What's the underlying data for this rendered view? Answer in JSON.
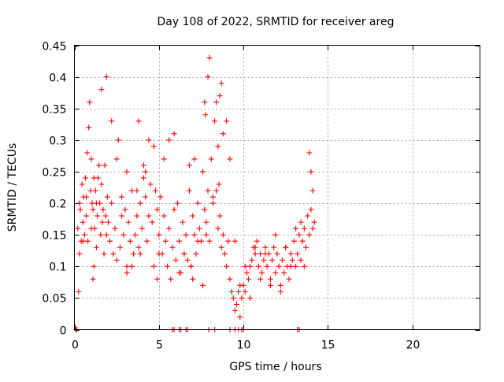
{
  "chart_data": {
    "type": "scatter",
    "title": "Day 108 of 2022, SRMTID for receiver areg",
    "xlabel": "GPS time / hours",
    "ylabel": "SRMTID / TECUs",
    "xlim": [
      0,
      24
    ],
    "ylim": [
      0,
      0.45
    ],
    "x_ticks": [
      0,
      5,
      10,
      15,
      20
    ],
    "x_tick_labels": [
      "0",
      "5",
      "10",
      "15",
      "20"
    ],
    "y_ticks": [
      0,
      0.05,
      0.1,
      0.15,
      0.2,
      0.25,
      0.3,
      0.35,
      0.4,
      0.45
    ],
    "y_tick_labels": [
      "0",
      "0.05",
      "0.1",
      "0.15",
      "0.2",
      "0.25",
      "0.3",
      "0.35",
      "0.4",
      "0.45"
    ],
    "grid": true,
    "marker": "+",
    "color": "#ff0000",
    "series": [
      {
        "name": "areg",
        "x": [
          0.2,
          0.25,
          0.3,
          0.35,
          0.4,
          0.45,
          0.5,
          0.55,
          0.6,
          0.65,
          0.7,
          0.75,
          0.8,
          0.85,
          0.9,
          0.95,
          1.0,
          1.05,
          1.1,
          1.15,
          1.2,
          1.25,
          1.3,
          1.35,
          1.4,
          1.45,
          1.5,
          1.55,
          1.6,
          1.65,
          1.7,
          1.75,
          1.8,
          1.85,
          1.9,
          1.95,
          2.0,
          2.1,
          2.2,
          2.3,
          2.4,
          2.5,
          2.6,
          2.7,
          2.8,
          2.9,
          3.0,
          3.1,
          3.2,
          3.3,
          3.4,
          3.5,
          3.6,
          3.7,
          3.8,
          3.9,
          4.0,
          4.1,
          4.2,
          4.3,
          4.4,
          4.5,
          4.6,
          4.7,
          4.8,
          4.9,
          5.0,
          5.1,
          5.2,
          5.3,
          5.4,
          5.5,
          5.6,
          5.7,
          5.8,
          5.9,
          6.0,
          6.1,
          6.2,
          6.3,
          6.4,
          6.5,
          6.6,
          6.7,
          6.8,
          6.9,
          7.0,
          7.1,
          7.2,
          7.3,
          7.4,
          7.5,
          7.6,
          7.7,
          7.8,
          7.9,
          8.0,
          8.1,
          8.2,
          8.3,
          8.4,
          8.5,
          8.6,
          8.7,
          8.8,
          8.9,
          9.0,
          9.1,
          9.2,
          9.3,
          9.4,
          9.5,
          9.6,
          9.7,
          9.8,
          9.9,
          10.0,
          10.1,
          10.2,
          10.3,
          10.4,
          10.5,
          10.6,
          10.7,
          10.8,
          10.9,
          11.0,
          11.1,
          11.2,
          11.3,
          11.4,
          11.5,
          11.6,
          11.7,
          11.8,
          11.9,
          12.0,
          12.1,
          12.2,
          12.3,
          12.4,
          12.5,
          12.6,
          12.7,
          12.8,
          12.9,
          13.0,
          13.1,
          13.2,
          13.3,
          13.4,
          13.5,
          13.6,
          13.7,
          13.8,
          13.9,
          14.0,
          14.1,
          14.2,
          0.3,
          0.5,
          0.7,
          1.0,
          1.1,
          1.15,
          1.3,
          1.6,
          1.9,
          2.2,
          2.5,
          2.8,
          3.1,
          3.1,
          3.4,
          3.7,
          3.8,
          3.9,
          4.1,
          4.2,
          4.4,
          4.7,
          4.9,
          5.0,
          5.3,
          5.6,
          5.9,
          6.2,
          6.5,
          6.8,
          6.8,
          6.9,
          7.0,
          7.1,
          7.3,
          7.6,
          7.7,
          7.75,
          7.8,
          7.9,
          8.0,
          8.2,
          8.4,
          8.5,
          8.55,
          8.6,
          8.7,
          8.8,
          9.0,
          9.2,
          9.5,
          9.8,
          10.1,
          10.4,
          10.7,
          11.0,
          11.3,
          11.6,
          11.9,
          12.2,
          12.5,
          12.8,
          13.1,
          13.4,
          13.6,
          13.9,
          14.0,
          14.1,
          0.1,
          0.15,
          5.8,
          5.9,
          6.2,
          6.3,
          6.6,
          6.7,
          7.95,
          8.3,
          9.2,
          9.5,
          9.7,
          9.9,
          10.0,
          13.2,
          13.3
        ],
        "y": [
          0.16,
          0.06,
          0.12,
          0.19,
          0.14,
          0.23,
          0.17,
          0.21,
          0.15,
          0.24,
          0.18,
          0.28,
          0.14,
          0.32,
          0.36,
          0.22,
          0.27,
          0.2,
          0.19,
          0.24,
          0.16,
          0.22,
          0.13,
          0.18,
          0.24,
          0.26,
          0.2,
          0.15,
          0.23,
          0.17,
          0.19,
          0.12,
          0.26,
          0.18,
          0.15,
          0.21,
          0.17,
          0.14,
          0.2,
          0.12,
          0.16,
          0.11,
          0.3,
          0.13,
          0.18,
          0.15,
          0.19,
          0.1,
          0.17,
          0.14,
          0.22,
          0.12,
          0.15,
          0.18,
          0.13,
          0.2,
          0.16,
          0.24,
          0.21,
          0.14,
          0.18,
          0.23,
          0.17,
          0.29,
          0.22,
          0.19,
          0.15,
          0.21,
          0.12,
          0.18,
          0.14,
          0.1,
          0.16,
          0.08,
          0.13,
          0.19,
          0.11,
          0.2,
          0.14,
          0.09,
          0.17,
          0.12,
          0.15,
          0.11,
          0.22,
          0.1,
          0.18,
          0.15,
          0.12,
          0.2,
          0.16,
          0.14,
          0.25,
          0.19,
          0.17,
          0.22,
          0.14,
          0.27,
          0.2,
          0.33,
          0.22,
          0.16,
          0.18,
          0.13,
          0.15,
          0.12,
          0.1,
          0.14,
          0.08,
          0.06,
          0.05,
          0.03,
          0.04,
          0.06,
          0.02,
          0.05,
          0.07,
          0.06,
          0.09,
          0.08,
          0.1,
          0.11,
          0.13,
          0.12,
          0.14,
          0.1,
          0.12,
          0.09,
          0.11,
          0.13,
          0.1,
          0.12,
          0.08,
          0.11,
          0.13,
          0.09,
          0.12,
          0.1,
          0.07,
          0.11,
          0.09,
          0.13,
          0.1,
          0.08,
          0.12,
          0.11,
          0.14,
          0.1,
          0.12,
          0.15,
          0.17,
          0.14,
          0.16,
          0.13,
          0.18,
          0.15,
          0.19,
          0.16,
          0.17,
          0.2,
          0.14,
          0.21,
          0.16,
          0.08,
          0.1,
          0.2,
          0.38,
          0.4,
          0.33,
          0.27,
          0.21,
          0.25,
          0.09,
          0.1,
          0.22,
          0.33,
          0.12,
          0.26,
          0.25,
          0.3,
          0.1,
          0.08,
          0.12,
          0.27,
          0.3,
          0.31,
          0.09,
          0.12,
          0.26,
          0.22,
          0.1,
          0.08,
          0.27,
          0.14,
          0.07,
          0.36,
          0.34,
          0.15,
          0.4,
          0.43,
          0.21,
          0.36,
          0.29,
          0.23,
          0.37,
          0.39,
          0.31,
          0.33,
          0.27,
          0.14,
          0.07,
          0.1,
          0.05,
          0.13,
          0.08,
          0.12,
          0.07,
          0.15,
          0.06,
          0.13,
          0.1,
          0.16,
          0.11,
          0.1,
          0.28,
          0.25,
          0.22,
          0.0,
          0.0,
          0.0,
          0.0,
          0.0,
          0.0,
          0.0,
          0.0,
          0.0,
          0.0,
          0.0,
          0.0,
          0.0,
          0.0,
          0.0,
          0.0,
          0.0
        ]
      }
    ]
  }
}
